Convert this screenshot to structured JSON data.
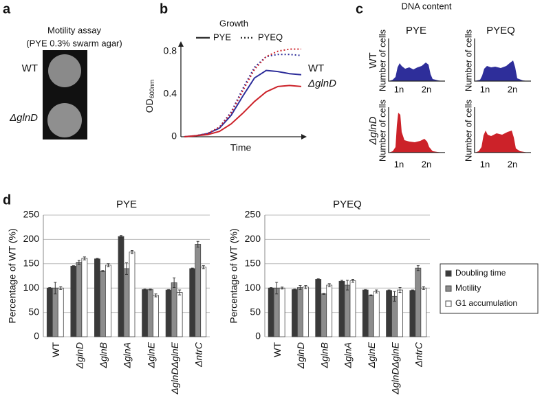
{
  "panel_labels": [
    "a",
    "b",
    "c",
    "d"
  ],
  "motility_assay": {
    "title": "Motility assay",
    "subtitle": "(PYE 0.3% swarm agar)",
    "strains": [
      {
        "label": "WT",
        "color": "#2e2e9a"
      },
      {
        "label": "ΔglnD",
        "color": "#cc2229"
      }
    ]
  },
  "dna_content": {
    "title": "DNA content",
    "columns": [
      "PYE",
      "PYEQ"
    ],
    "rows": [
      {
        "label": "WT",
        "color": "#2e2e9a"
      },
      {
        "label": "ΔglnD",
        "color": "#cc2229"
      }
    ],
    "y_label": "Number of cells",
    "x_ticks": [
      "1n",
      "2n"
    ]
  },
  "chart_data": [
    {
      "type": "line",
      "title": "Growth",
      "legend": [
        {
          "label": "PYE",
          "dash": "solid"
        },
        {
          "label": "PYEQ",
          "dash": "dotted"
        }
      ],
      "curve_labels": [
        {
          "text": "WT",
          "color": "#2e2e9a"
        },
        {
          "text": "ΔglnD",
          "color": "#cc2229"
        }
      ],
      "x_label": "Time",
      "y_label": "OD",
      "y_label_sub": "600nm",
      "categories": [
        null,
        null,
        null,
        null,
        null,
        null,
        null,
        null,
        null,
        null,
        null
      ],
      "series": [
        {
          "color": "#2e2e9a",
          "dash": "solid",
          "values": [
            0,
            0.01,
            0.03,
            0.08,
            0.2,
            0.38,
            0.55,
            0.62,
            0.61,
            0.59,
            0.58
          ]
        },
        {
          "color": "#cc2229",
          "dash": "solid",
          "values": [
            0,
            0.01,
            0.02,
            0.05,
            0.12,
            0.22,
            0.33,
            0.42,
            0.47,
            0.48,
            0.47
          ]
        },
        {
          "color": "#2e2e9a",
          "dash": "dotted",
          "values": [
            0,
            0.01,
            0.03,
            0.09,
            0.23,
            0.45,
            0.65,
            0.75,
            0.77,
            0.77,
            0.76
          ]
        },
        {
          "color": "#cc2229",
          "dash": "dotted",
          "values": [
            0,
            0.01,
            0.03,
            0.09,
            0.22,
            0.43,
            0.63,
            0.75,
            0.8,
            0.82,
            0.82
          ]
        }
      ],
      "ylim": [
        0,
        0.9
      ],
      "yticks": [
        0,
        0.4,
        0.8
      ]
    },
    {
      "type": "bar",
      "title": "PYE",
      "y_label": "Percentage of WT (%)",
      "categories": [
        "WT",
        "ΔglnD",
        "ΔglnB",
        "ΔglnA",
        "ΔglnE",
        "ΔglnDΔglnE",
        "ΔntrC"
      ],
      "series": [
        {
          "color": "#3a3a3a",
          "values": [
            100,
            145,
            160,
            206,
            97,
            96,
            140
          ],
          "errors": [
            1,
            1,
            1,
            2,
            1,
            1,
            1
          ]
        },
        {
          "color": "#8c8c8c",
          "values": [
            100,
            153,
            135,
            140,
            97,
            111,
            190
          ],
          "errors": [
            12,
            4,
            1,
            12,
            1,
            10,
            6
          ]
        },
        {
          "color": "#ffffff",
          "values": [
            100,
            161,
            147,
            174,
            85,
            91,
            143
          ],
          "errors": [
            3,
            3,
            3,
            3,
            3,
            5,
            3
          ]
        }
      ],
      "ylim": [
        0,
        250
      ],
      "yticks": [
        0,
        50,
        100,
        150,
        200,
        250
      ],
      "grid": true
    },
    {
      "type": "bar",
      "title": "PYEQ",
      "y_label": "Percentage of WT (%)",
      "categories": [
        "WT",
        "ΔglnD",
        "ΔglnB",
        "ΔglnA",
        "ΔglnE",
        "ΔglnDΔglnE",
        "ΔntrC"
      ],
      "series": [
        {
          "name": "Doubling time",
          "color": "#3a3a3a",
          "values": [
            100,
            97,
            118,
            114,
            96,
            95,
            95
          ],
          "errors": [
            1,
            1,
            1,
            2,
            1,
            1,
            1
          ]
        },
        {
          "name": "Motility",
          "color": "#8c8c8c",
          "values": [
            100,
            101,
            88,
            106,
            85,
            83,
            141
          ],
          "errors": [
            12,
            4,
            1,
            10,
            1,
            10,
            5
          ]
        },
        {
          "name": "G1 accumulation",
          "color": "#ffffff",
          "values": [
            100,
            102,
            106,
            115,
            93,
            96,
            100
          ],
          "errors": [
            2,
            3,
            3,
            3,
            3,
            5,
            3
          ]
        }
      ],
      "ylim": [
        0,
        250
      ],
      "yticks": [
        0,
        50,
        100,
        150,
        200,
        250
      ],
      "grid": true,
      "legend": "right"
    }
  ]
}
